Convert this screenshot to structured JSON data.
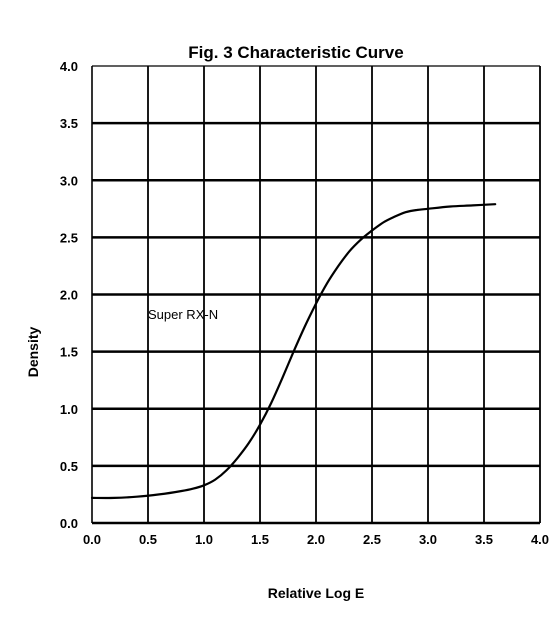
{
  "chart_data": {
    "type": "line",
    "title": "Fig. 3  Characteristic Curve",
    "xlabel": "Relative Log E",
    "ylabel": "Density",
    "xlim": [
      0.0,
      4.0
    ],
    "ylim": [
      0.0,
      4.0
    ],
    "x_ticks": [
      "0.0",
      "0.5",
      "1.0",
      "1.5",
      "2.0",
      "2.5",
      "3.0",
      "3.5",
      "4.0"
    ],
    "y_ticks": [
      "0.0",
      "0.5",
      "1.0",
      "1.5",
      "2.0",
      "2.5",
      "3.0",
      "3.5",
      "4.0"
    ],
    "grid": true,
    "annotations": [
      {
        "text": "Super RX-N",
        "x": 0.5,
        "y": 1.83
      }
    ],
    "series": [
      {
        "x": [
          0.0,
          0.2,
          0.4,
          0.6,
          0.8,
          0.9,
          1.0,
          1.1,
          1.2,
          1.3,
          1.4,
          1.5,
          1.6,
          1.7,
          1.8,
          1.9,
          2.0,
          2.1,
          2.2,
          2.3,
          2.4,
          2.5,
          2.6,
          2.7,
          2.8,
          2.9,
          3.0,
          3.2,
          3.4,
          3.6
        ],
        "y": [
          0.22,
          0.22,
          0.23,
          0.25,
          0.28,
          0.3,
          0.33,
          0.38,
          0.46,
          0.57,
          0.7,
          0.86,
          1.05,
          1.27,
          1.5,
          1.72,
          1.92,
          2.1,
          2.25,
          2.38,
          2.48,
          2.56,
          2.63,
          2.68,
          2.72,
          2.74,
          2.75,
          2.77,
          2.78,
          2.79
        ]
      }
    ]
  }
}
